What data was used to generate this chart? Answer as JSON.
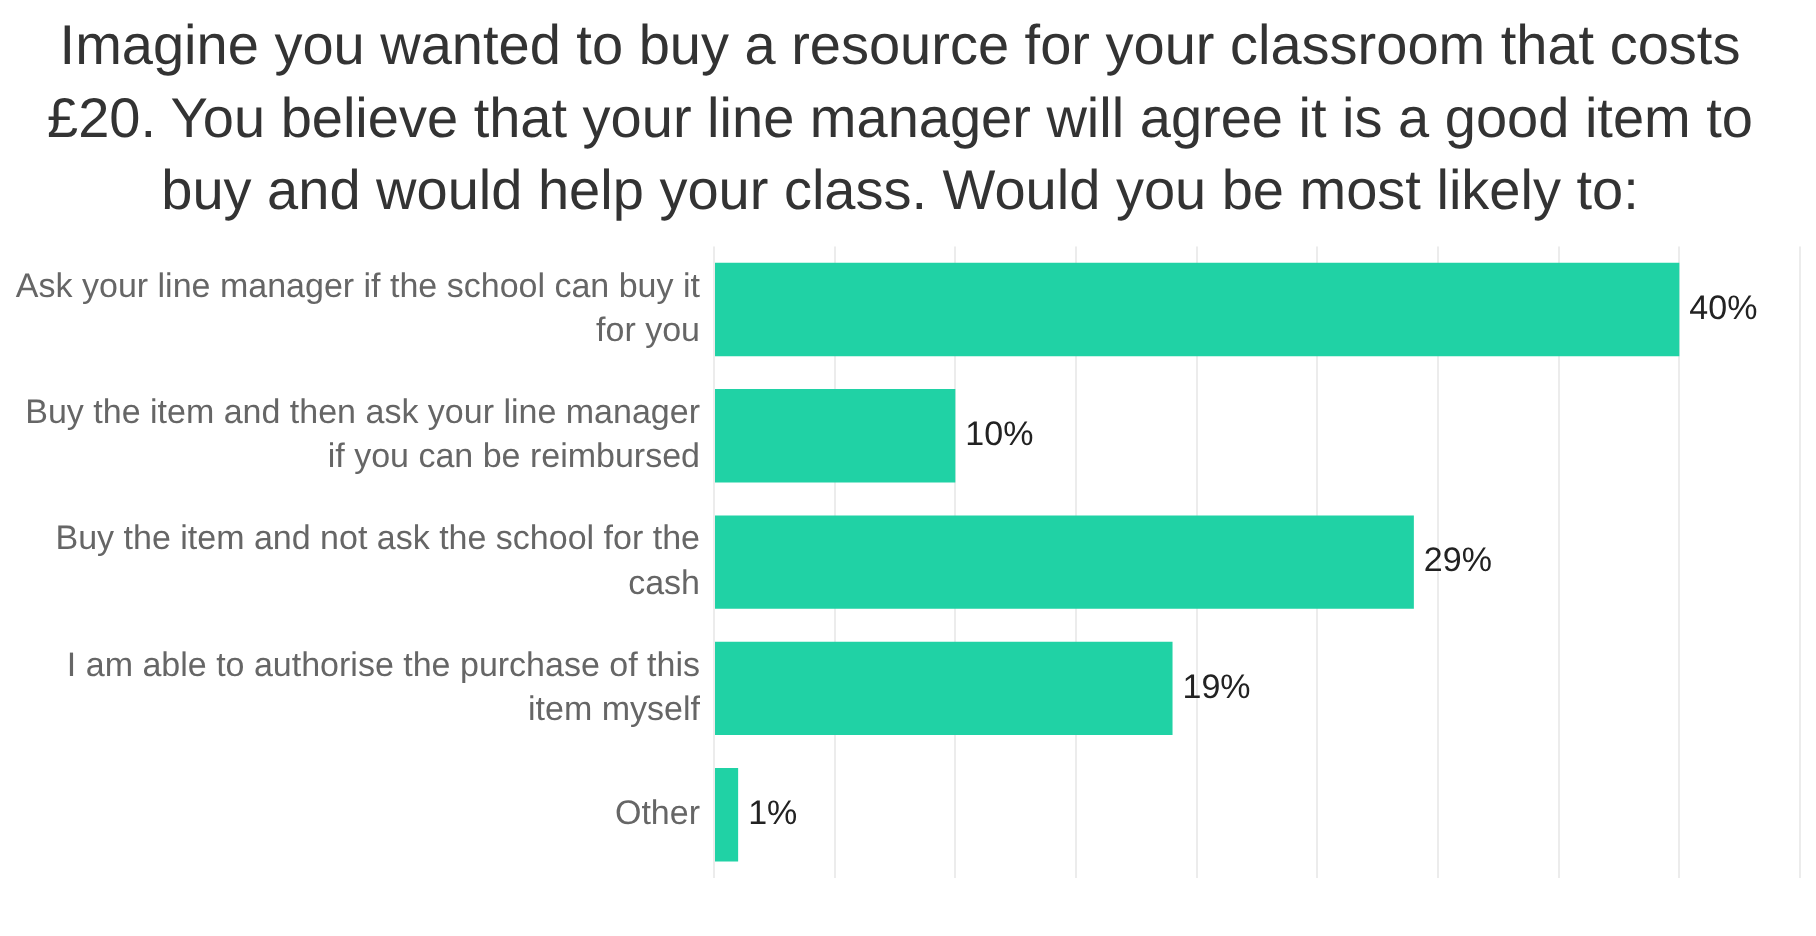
{
  "chart_data": {
    "type": "bar",
    "orientation": "horizontal",
    "title": "Imagine you wanted to buy a resource for your classroom that costs £20. You believe that your line manager will agree it is a good item to buy and would help your class. Would you be most likely to:",
    "categories": [
      "Ask your line manager if the school can buy it for you",
      "Buy the item and then ask your line manager if you can be reimbursed",
      "Buy the item and not ask the school for the cash",
      "I am able to authorise the purchase of this item myself",
      "Other"
    ],
    "values": [
      40,
      10,
      29,
      19,
      1
    ],
    "value_labels": [
      "40%",
      "10%",
      "29%",
      "19%",
      "1%"
    ],
    "color": "#20d2a5",
    "xlim": [
      0,
      45
    ],
    "xticks": [
      {
        "value": 0,
        "label": null
      },
      {
        "value": 5,
        "label": null
      },
      {
        "value": 10,
        "label": null
      },
      {
        "value": 15,
        "label": null
      },
      {
        "value": 20,
        "label": null
      },
      {
        "value": 25,
        "label": null
      },
      {
        "value": 30,
        "label": null
      },
      {
        "value": 35,
        "label": null
      },
      {
        "value": 40,
        "label": null
      },
      {
        "value": 45,
        "label": null
      }
    ],
    "grid": "x",
    "tick_labels": "y"
  }
}
